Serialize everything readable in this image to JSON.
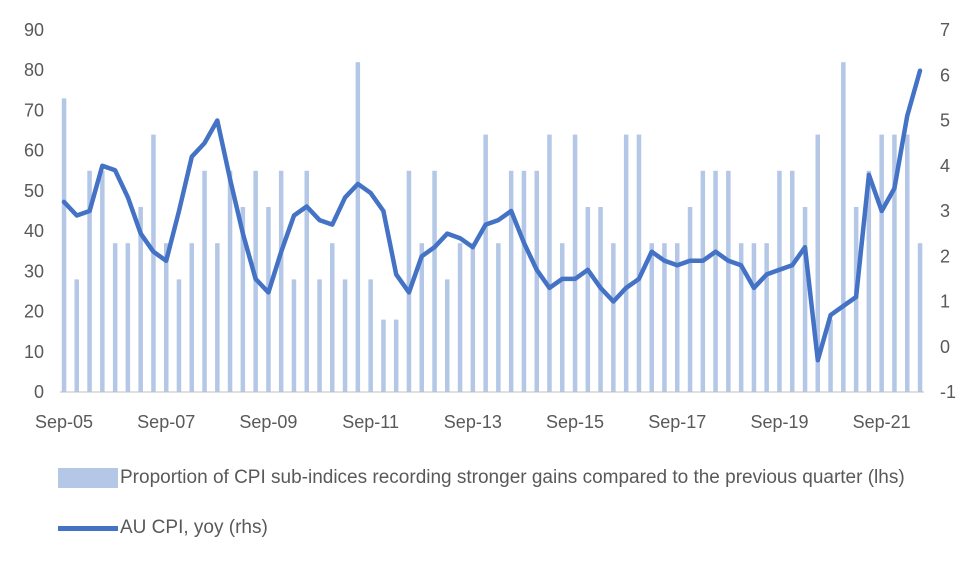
{
  "chart_data": {
    "type": "bar+line",
    "title": "",
    "categories": [
      "Sep-05",
      "Dec-05",
      "Mar-06",
      "Jun-06",
      "Sep-06",
      "Dec-06",
      "Mar-07",
      "Jun-07",
      "Sep-07",
      "Dec-07",
      "Mar-08",
      "Jun-08",
      "Sep-08",
      "Dec-08",
      "Mar-09",
      "Jun-09",
      "Sep-09",
      "Dec-09",
      "Mar-10",
      "Jun-10",
      "Sep-10",
      "Dec-10",
      "Mar-11",
      "Jun-11",
      "Sep-11",
      "Dec-11",
      "Mar-12",
      "Jun-12",
      "Sep-12",
      "Dec-12",
      "Mar-13",
      "Jun-13",
      "Sep-13",
      "Dec-13",
      "Mar-14",
      "Jun-14",
      "Sep-14",
      "Dec-14",
      "Mar-15",
      "Jun-15",
      "Sep-15",
      "Dec-15",
      "Mar-16",
      "Jun-16",
      "Sep-16",
      "Dec-16",
      "Mar-17",
      "Jun-17",
      "Sep-17",
      "Dec-17",
      "Mar-18",
      "Jun-18",
      "Sep-18",
      "Dec-18",
      "Mar-19",
      "Jun-19",
      "Sep-19",
      "Dec-19",
      "Mar-20",
      "Jun-20",
      "Sep-20",
      "Dec-20",
      "Mar-21",
      "Jun-21",
      "Sep-21",
      "Dec-21",
      "Mar-22",
      "Jun-22"
    ],
    "x_tick_labels": [
      "Sep-05",
      "Sep-07",
      "Sep-09",
      "Sep-11",
      "Sep-13",
      "Sep-15",
      "Sep-17",
      "Sep-19",
      "Sep-21"
    ],
    "y_left": {
      "min": 0,
      "max": 90,
      "step": 10
    },
    "y_right": {
      "min": -1,
      "max": 7,
      "step": 1
    },
    "series": [
      {
        "name": "Proportion of CPI sub-indices recording stronger gains compared to the  previous quarter (lhs)",
        "type": "bar",
        "axis": "left",
        "color": "#b4c7e7",
        "values": [
          73,
          28,
          55,
          55,
          37,
          37,
          46,
          64,
          37,
          28,
          37,
          55,
          37,
          55,
          46,
          55,
          46,
          55,
          28,
          55,
          28,
          37,
          28,
          82,
          28,
          18,
          18,
          55,
          37,
          55,
          28,
          37,
          37,
          64,
          37,
          55,
          55,
          55,
          64,
          37,
          64,
          46,
          46,
          37,
          64,
          64,
          37,
          37,
          37,
          46,
          55,
          55,
          55,
          37,
          37,
          37,
          55,
          55,
          46,
          64,
          18,
          82,
          46,
          55,
          64,
          64,
          64,
          37
        ]
      },
      {
        "name": "AU CPI, yoy (rhs)",
        "type": "line",
        "axis": "right",
        "color": "#4472c4",
        "values": [
          3.2,
          2.9,
          3.0,
          4.0,
          3.9,
          3.3,
          2.5,
          2.1,
          1.9,
          3.0,
          4.2,
          4.5,
          5.0,
          3.7,
          2.5,
          1.5,
          1.2,
          2.1,
          2.9,
          3.1,
          2.8,
          2.7,
          3.3,
          3.6,
          3.4,
          3.0,
          1.6,
          1.2,
          2.0,
          2.2,
          2.5,
          2.4,
          2.2,
          2.7,
          2.8,
          3.0,
          2.3,
          1.7,
          1.3,
          1.5,
          1.5,
          1.7,
          1.3,
          1.0,
          1.3,
          1.5,
          2.1,
          1.9,
          1.8,
          1.9,
          1.9,
          2.1,
          1.9,
          1.8,
          1.3,
          1.6,
          1.7,
          1.8,
          2.2,
          -0.3,
          0.7,
          0.9,
          1.1,
          3.8,
          3.0,
          3.5,
          5.1,
          6.1
        ]
      }
    ],
    "legend": "bottom"
  },
  "legend": {
    "bar_label": "Proportion of CPI sub-indices recording stronger gains compared to the  previous quarter (lhs)",
    "line_label": "AU CPI, yoy (rhs)"
  }
}
